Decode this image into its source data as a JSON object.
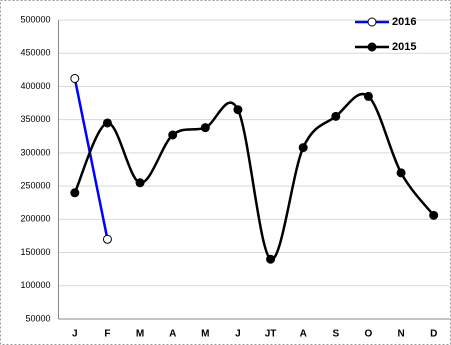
{
  "chart_data": {
    "type": "line",
    "categories": [
      "J",
      "F",
      "M",
      "A",
      "M",
      "J",
      "JT",
      "A",
      "S",
      "O",
      "N",
      "D"
    ],
    "series": [
      {
        "name": "2016",
        "color": "#0000ff",
        "marker_fill": "#ffffff",
        "values": [
          412000,
          170000,
          null,
          null,
          null,
          null,
          null,
          null,
          null,
          null,
          null,
          null
        ]
      },
      {
        "name": "2015",
        "color": "#000000",
        "marker_fill": "#000000",
        "values": [
          240000,
          345000,
          255000,
          327000,
          338000,
          365000,
          140000,
          308000,
          355000,
          385000,
          270000,
          206000
        ]
      }
    ],
    "ylim": [
      50000,
      500000
    ],
    "yticks": [
      50000,
      100000,
      150000,
      200000,
      250000,
      300000,
      350000,
      400000,
      450000,
      500000
    ],
    "grid": true,
    "smooth": true,
    "legend": "top-right"
  }
}
